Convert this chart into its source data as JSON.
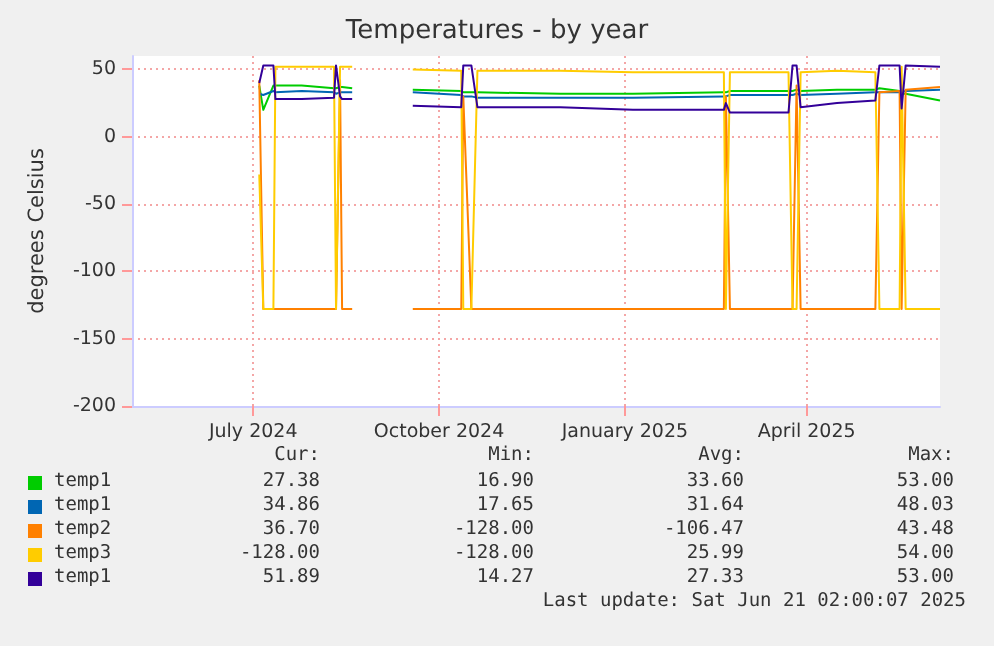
{
  "chart_data": {
    "type": "line",
    "title": "Temperatures - by year",
    "ylabel": "degrees Celsius",
    "x": [
      "2024-07-19",
      "2024-07-21",
      "2024-07-26",
      "2024-07-27",
      "2024-08-09",
      "2024-08-25",
      "2024-08-26",
      "2024-08-28",
      "2024-08-29",
      "2024-09-03",
      "2024-09-18",
      "2024-10-03",
      "2024-10-27",
      "2024-10-28",
      "2024-11-01",
      "2024-11-04",
      "2024-12-15",
      "2025-01-20",
      "2025-03-06",
      "2025-03-07",
      "2025-03-09",
      "2025-04-07",
      "2025-04-09",
      "2025-04-11",
      "2025-04-13",
      "2025-05-01",
      "2025-05-20",
      "2025-05-22",
      "2025-06-01",
      "2025-06-02",
      "2025-06-04",
      "2025-06-21"
    ],
    "series": [
      {
        "name": "temp1",
        "color": "#00cc00",
        "values": [
          38,
          20,
          38,
          38,
          38,
          36,
          36,
          37,
          37,
          36,
          null,
          35,
          34,
          33,
          33,
          33,
          32,
          32,
          33,
          33,
          34,
          34,
          34,
          35,
          34,
          35,
          35,
          36,
          34,
          32,
          32,
          27
        ]
      },
      {
        "name": "temp1",
        "color": "#0066b3",
        "values": [
          32,
          31,
          34,
          33,
          34,
          33,
          32,
          33,
          33,
          33,
          null,
          33,
          31,
          30,
          30,
          29,
          29,
          29,
          30,
          30,
          31,
          31,
          31,
          32,
          31,
          32,
          33,
          33,
          33,
          33,
          34,
          35
        ]
      },
      {
        "name": "temp2",
        "color": "#ff8000",
        "values": [
          42,
          -128,
          -128,
          -128,
          -128,
          -128,
          -128,
          42,
          -128,
          -128,
          null,
          -128,
          -128,
          30,
          -128,
          -128,
          -128,
          -128,
          -128,
          30,
          -128,
          -128,
          -128,
          38,
          -128,
          -128,
          -128,
          33,
          34,
          -128,
          35,
          37
        ]
      },
      {
        "name": "temp3",
        "color": "#ffcc00",
        "values": [
          -28,
          -128,
          -128,
          52,
          52,
          52,
          -128,
          52,
          52,
          52,
          null,
          50,
          49,
          -128,
          -128,
          49,
          49,
          48,
          48,
          -128,
          48,
          48,
          -128,
          -128,
          48,
          49,
          48,
          -128,
          -128,
          52,
          -128,
          -128
        ]
      },
      {
        "name": "temp1",
        "color": "#330099",
        "values": [
          40,
          53,
          53,
          28,
          28,
          29,
          53,
          30,
          28,
          28,
          null,
          23,
          22,
          53,
          53,
          22,
          22,
          20,
          20,
          25,
          18,
          18,
          53,
          53,
          22,
          25,
          27,
          53,
          53,
          21,
          53,
          52
        ]
      }
    ],
    "xlim": [
      "2024-05-17",
      "2025-06-21"
    ],
    "xticks": [
      {
        "value": "2024-07-16",
        "label": "July 2024"
      },
      {
        "value": "2024-10-16",
        "label": "October 2024"
      },
      {
        "value": "2025-01-16",
        "label": "January 2025"
      },
      {
        "value": "2025-04-16",
        "label": "April 2025"
      }
    ],
    "ylim": [
      -200,
      60
    ],
    "yticks": [
      -200,
      -150,
      -100,
      -50,
      0,
      50
    ],
    "grid": true,
    "legend": "bottom",
    "marker": "none",
    "line_style": "solid",
    "annotations": [
      "Cur:",
      "Min:",
      "Avg:",
      "Max:",
      "27.38",
      "16.90",
      "33.60",
      "53.00",
      "34.86",
      "17.65",
      "31.64",
      "48.03",
      "36.70",
      "-128.00",
      "-106.47",
      "43.48",
      "-128.00",
      "-128.00",
      "25.99",
      "54.00",
      "51.89",
      "14.27",
      "27.33",
      "53.00",
      "Last update: Sat Jun 21 02:00:07 2025"
    ]
  }
}
